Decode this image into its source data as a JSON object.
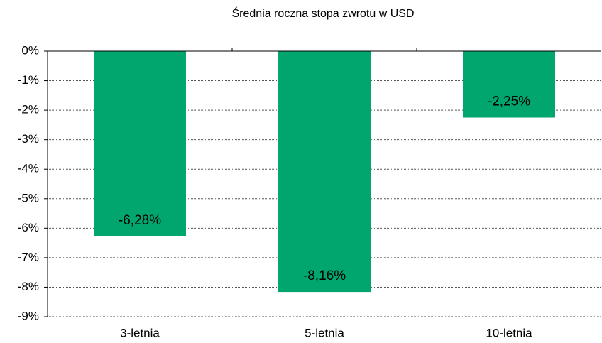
{
  "chart_data": {
    "type": "bar",
    "title": "Średnia roczna stopa zwrotu w USD",
    "categories": [
      "3-letnia",
      "5-letnia",
      "10-letnia"
    ],
    "values": [
      -6.28,
      -8.16,
      -2.25
    ],
    "value_labels": [
      "-6,28%",
      "-8,16%",
      "-2,25%"
    ],
    "color": "#00a66e",
    "ylim": [
      -9,
      0
    ],
    "yticks": [
      {
        "value": 0,
        "label": "0%"
      },
      {
        "value": -1,
        "label": "-1%"
      },
      {
        "value": -2,
        "label": "-2%"
      },
      {
        "value": -3,
        "label": "-3%"
      },
      {
        "value": -4,
        "label": "-4%"
      },
      {
        "value": -5,
        "label": "-5%"
      },
      {
        "value": -6,
        "label": "-6%"
      },
      {
        "value": -7,
        "label": "-7%"
      },
      {
        "value": -8,
        "label": "-8%"
      },
      {
        "value": -9,
        "label": "-9%"
      }
    ],
    "grid": true
  }
}
